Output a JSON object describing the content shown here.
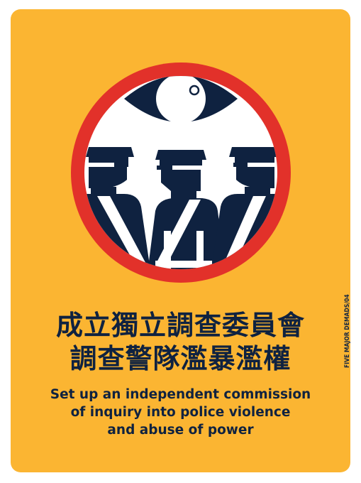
{
  "colors": {
    "background": "#fbb532",
    "ring": "#e2312a",
    "ink": "#0f2240",
    "white": "#ffffff"
  },
  "emblem": {
    "icon": "no-police-surveillance-sign-icon"
  },
  "headline_zh": {
    "line1": "成立獨立調查委員會",
    "line2": "調查警隊濫暴濫權"
  },
  "headline_en": {
    "line1": "Set up an independent commission",
    "line2": "of inquiry into police violence",
    "line3": "and abuse of power"
  },
  "side_label": "FIVE MAJOR DEMADS/04"
}
